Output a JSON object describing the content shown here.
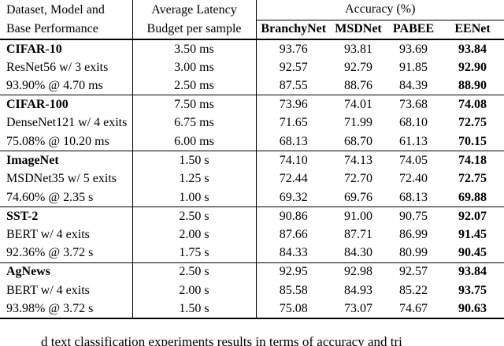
{
  "table": {
    "header": {
      "col1_line1": "Dataset, Model and",
      "col1_line2": "Base Performance",
      "col2_line1": "Average Latency",
      "col2_line2": "Budget per sample",
      "accuracy_title": "Accuracy (%)",
      "methods": [
        "BranchyNet",
        "MSDNet",
        "PABEE",
        "EENet"
      ]
    },
    "groups": [
      {
        "rows": [
          {
            "label": "CIFAR-10",
            "label_bold": true,
            "budget": "3.50 ms",
            "values": [
              "93.76",
              "93.81",
              "93.69",
              "93.84"
            ]
          },
          {
            "label": "ResNet56 w/ 3 exits",
            "label_bold": false,
            "budget": "3.00 ms",
            "values": [
              "92.57",
              "92.79",
              "91.85",
              "92.90"
            ]
          },
          {
            "label": "93.90% @ 4.70 ms",
            "label_bold": false,
            "budget": "2.50 ms",
            "values": [
              "87.55",
              "88.76",
              "84.39",
              "88.90"
            ]
          }
        ]
      },
      {
        "rows": [
          {
            "label": "CIFAR-100",
            "label_bold": true,
            "budget": "7.50 ms",
            "values": [
              "73.96",
              "74.01",
              "73.68",
              "74.08"
            ]
          },
          {
            "label": "DenseNet121 w/ 4 exits",
            "label_bold": false,
            "budget": "6.75 ms",
            "values": [
              "71.65",
              "71.99",
              "68.10",
              "72.75"
            ]
          },
          {
            "label": "75.08% @ 10.20 ms",
            "label_bold": false,
            "budget": "6.00 ms",
            "values": [
              "68.13",
              "68.70",
              "61.13",
              "70.15"
            ]
          }
        ]
      },
      {
        "rows": [
          {
            "label": "ImageNet",
            "label_bold": true,
            "budget": "1.50 s",
            "values": [
              "74.10",
              "74.13",
              "74.05",
              "74.18"
            ]
          },
          {
            "label": "MSDNet35 w/ 5 exits",
            "label_bold": false,
            "budget": "1.25 s",
            "values": [
              "72.44",
              "72.70",
              "72.40",
              "72.75"
            ]
          },
          {
            "label": "74.60% @ 2.35 s",
            "label_bold": false,
            "budget": "1.00 s",
            "values": [
              "69.32",
              "69.76",
              "68.13",
              "69.88"
            ]
          }
        ]
      },
      {
        "rows": [
          {
            "label": "SST-2",
            "label_bold": true,
            "budget": "2.50 s",
            "values": [
              "90.86",
              "91.00",
              "90.75",
              "92.07"
            ]
          },
          {
            "label": "BERT w/ 4 exits",
            "label_bold": false,
            "budget": "2.00 s",
            "values": [
              "87.66",
              "87.71",
              "86.99",
              "91.45"
            ]
          },
          {
            "label": "92.36% @ 3.72 s",
            "label_bold": false,
            "budget": "1.75 s",
            "values": [
              "84.33",
              "84.30",
              "80.99",
              "90.45"
            ]
          }
        ]
      },
      {
        "rows": [
          {
            "label": "AgNews",
            "label_bold": true,
            "budget": "2.50 s",
            "values": [
              "92.95",
              "92.98",
              "92.57",
              "93.84"
            ]
          },
          {
            "label": "BERT w/ 4 exits",
            "label_bold": false,
            "budget": "2.00 s",
            "values": [
              "85.58",
              "84.93",
              "85.22",
              "93.75"
            ]
          },
          {
            "label": "93.98% @ 3.72 s",
            "label_bold": false,
            "budget": "1.50 s",
            "values": [
              "75.08",
              "73.07",
              "74.67",
              "90.63"
            ]
          }
        ]
      }
    ]
  },
  "caption_fragment": "d text classification experiments results in terms of accuracy and tri"
}
